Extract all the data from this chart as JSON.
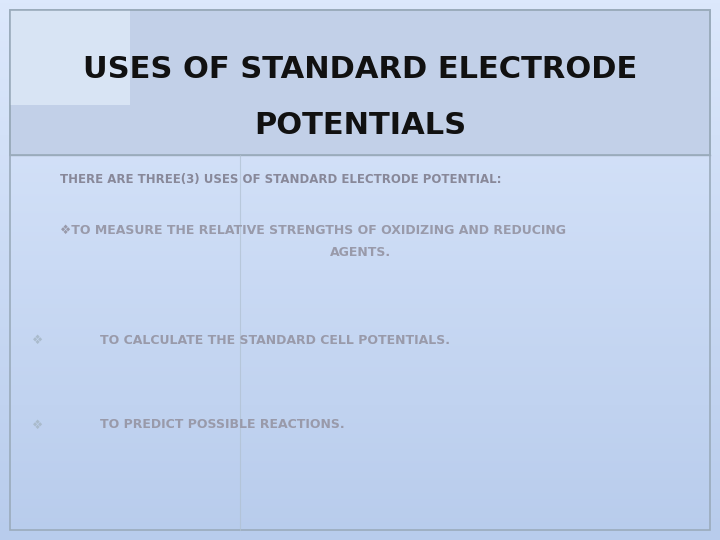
{
  "title_line1": "USES OF STANDARD ELECTRODE",
  "title_line2": "POTENTIALS",
  "subtitle": "THERE ARE THREE(3) USES OF STANDARD ELECTRODE POTENTIAL:",
  "bullet1_line1": "❖TO MEASURE THE RELATIVE STRENGTHS OF OXIDIZING AND REDUCING",
  "bullet1_line2": "AGENTS.",
  "bullet2": "TO CALCULATE THE STANDARD CELL POTENTIALS.",
  "bullet3": "TO PREDICT POSSIBLE REACTIONS.",
  "bg_color": "#cad5ea",
  "bg_bottom_color": "#c5d5f0",
  "title_bg_color": "#b8c8e0",
  "corner_rect_color": "#d0dcf0",
  "title_text_color": "#111111",
  "subtitle_text_color": "#888899",
  "bullet_text_color": "#999aaa",
  "bullet_symbol_color": "#aabbcc",
  "border_color": "#9aabbb",
  "vert_line_color": "#b0c0d0",
  "title_fontsize": 22,
  "subtitle_fontsize": 8.5,
  "bullet_fontsize": 9,
  "figsize": [
    7.2,
    5.4
  ],
  "dpi": 100
}
